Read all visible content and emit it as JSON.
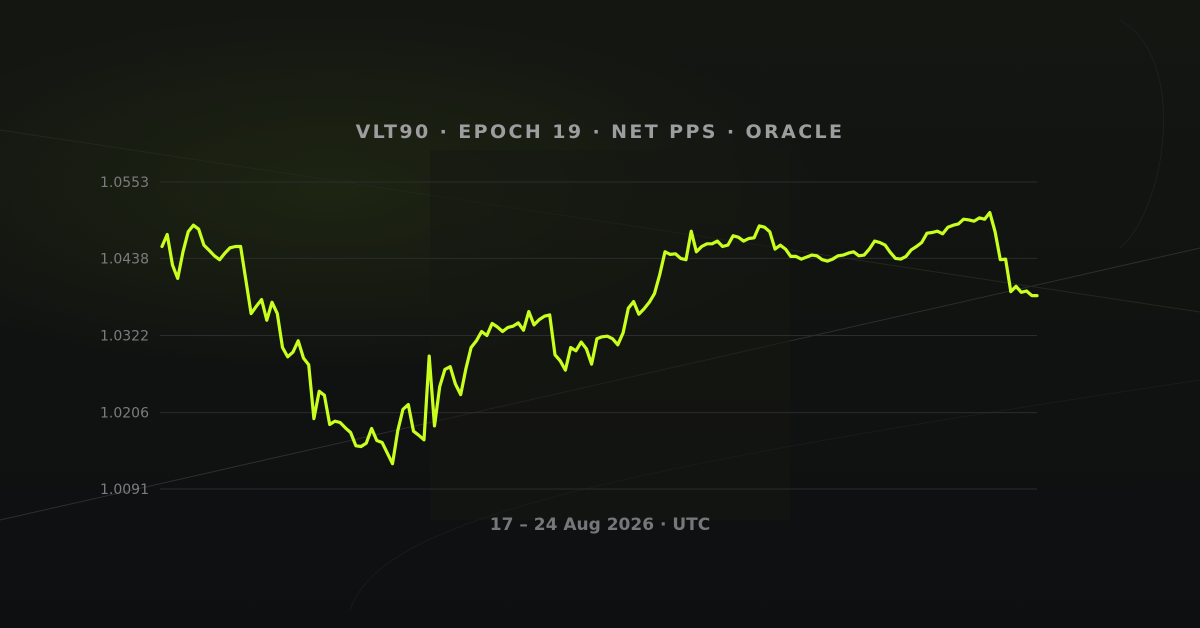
{
  "colors": {
    "background": "#0f1012",
    "series": "#c8ff1e",
    "title": "#9b9d9f",
    "subtitle": "#75777a",
    "tick": "#7a7c7f",
    "grid": "#2a2c2e"
  },
  "chart_data": {
    "type": "line",
    "title": "VLT90 · EPOCH 19 · NET PPS · ORACLE",
    "subtitle": "17 – 24 Aug 2026 · UTC",
    "xlabel": "",
    "ylabel": "",
    "grid": true,
    "legend": "none",
    "ylim": [
      1.0091,
      1.0553
    ],
    "yticks": [
      1.0091,
      1.0206,
      1.0322,
      1.0438,
      1.0553
    ],
    "ytick_labels": [
      "1.0091",
      "1.0206",
      "1.0322",
      "1.0438",
      "1.0553"
    ],
    "series": [
      {
        "values": [
          1.0456,
          1.0474,
          1.0428,
          1.0408,
          1.0448,
          1.0478,
          1.0488,
          1.0482,
          1.0458,
          1.045,
          1.0442,
          1.0436,
          1.0446,
          1.0454,
          1.0456,
          1.0456,
          1.0406,
          1.0355,
          1.0366,
          1.0376,
          1.0345,
          1.0372,
          1.0355,
          1.0304,
          1.029,
          1.0297,
          1.0314,
          1.0288,
          1.0278,
          1.0197,
          1.0238,
          1.0232,
          1.0188,
          1.0193,
          1.0191,
          1.0183,
          1.0176,
          1.0156,
          1.0155,
          1.016,
          1.0182,
          1.0164,
          1.0161,
          1.0145,
          1.0129,
          1.0179,
          1.0211,
          1.0218,
          1.0178,
          1.0172,
          1.0165,
          1.0291,
          1.0186,
          1.0245,
          1.0271,
          1.0275,
          1.0249,
          1.0233,
          1.0272,
          1.0304,
          1.0314,
          1.0328,
          1.0322,
          1.034,
          1.0335,
          1.0328,
          1.0334,
          1.0336,
          1.0341,
          1.033,
          1.0358,
          1.0338,
          1.0346,
          1.0351,
          1.0353,
          1.0293,
          1.0284,
          1.027,
          1.0304,
          1.0299,
          1.0312,
          1.0302,
          1.0279,
          1.0317,
          1.032,
          1.0321,
          1.0317,
          1.0308,
          1.0326,
          1.0363,
          1.0373,
          1.0354,
          1.0362,
          1.0372,
          1.0385,
          1.0414,
          1.0448,
          1.0444,
          1.0445,
          1.0438,
          1.0436,
          1.0479,
          1.0448,
          1.0456,
          1.046,
          1.046,
          1.0464,
          1.0456,
          1.0458,
          1.0472,
          1.047,
          1.0464,
          1.0468,
          1.0469,
          1.0487,
          1.0485,
          1.0478,
          1.0452,
          1.0458,
          1.0452,
          1.0441,
          1.0441,
          1.0437,
          1.044,
          1.0443,
          1.0442,
          1.0436,
          1.0434,
          1.0437,
          1.0442,
          1.0443,
          1.0446,
          1.0448,
          1.0442,
          1.0443,
          1.0452,
          1.0464,
          1.0462,
          1.0458,
          1.0447,
          1.0438,
          1.0437,
          1.0441,
          1.0451,
          1.0456,
          1.0462,
          1.0476,
          1.0477,
          1.0479,
          1.0475,
          1.0485,
          1.0488,
          1.049,
          1.0497,
          1.0496,
          1.0494,
          1.0499,
          1.0497,
          1.0507,
          1.0478,
          1.0436,
          1.0437,
          1.0388,
          1.0396,
          1.0387,
          1.0389,
          1.0382,
          1.0382
        ]
      }
    ]
  }
}
